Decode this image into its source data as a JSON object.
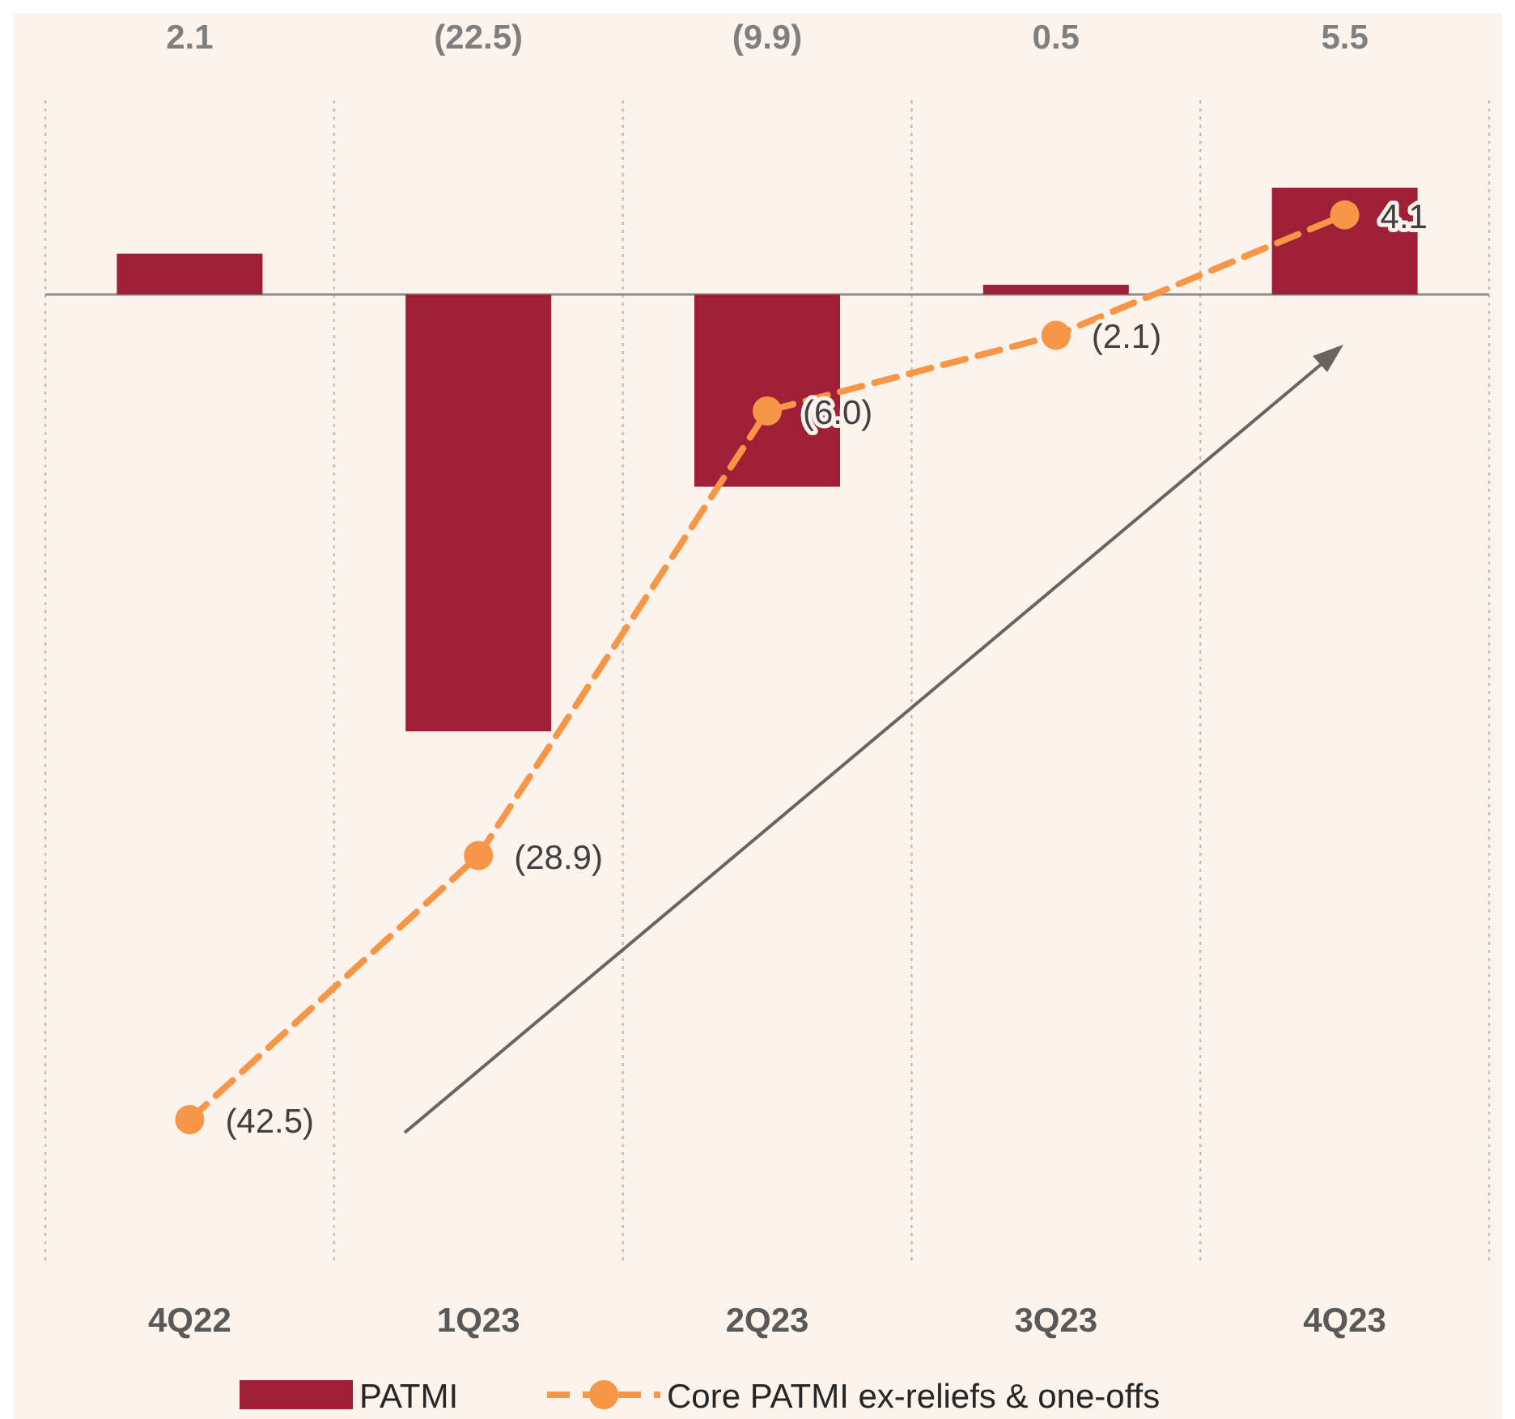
{
  "chart_data": {
    "type": "bar",
    "categories": [
      "4Q22",
      "1Q23",
      "2Q23",
      "3Q23",
      "4Q23"
    ],
    "ylim": [
      -50,
      10
    ],
    "tick_labels": "x",
    "grid": "x",
    "legend": "bottom",
    "series": [
      {
        "name": "PATMI",
        "type": "bar",
        "color": "#9e1f36",
        "values": [
          2.1,
          -22.5,
          -9.9,
          0.5,
          5.5
        ],
        "value_labels": [
          "2.1",
          "(22.5)",
          "(9.9)",
          "0.5",
          "5.5"
        ]
      },
      {
        "name": "Core PATMI ex-reliefs & one-offs",
        "type": "line",
        "color": "#f79646",
        "marker": "circle",
        "line_style": "dashed",
        "values": [
          -42.5,
          -28.9,
          -6.0,
          -2.1,
          4.1
        ],
        "value_labels": [
          "(42.5)",
          "(28.9)",
          "(6.0)",
          "(2.1)",
          "4.1"
        ]
      }
    ]
  }
}
